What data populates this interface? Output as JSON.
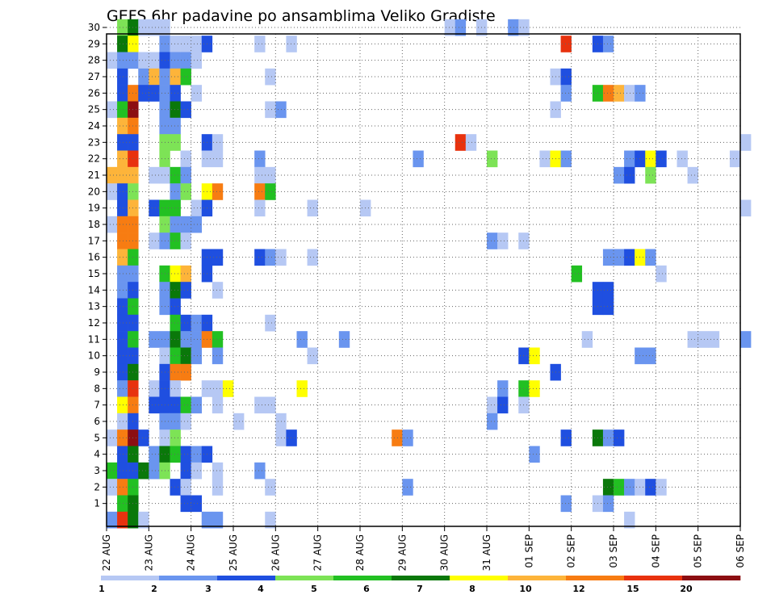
{
  "chart_data": {
    "type": "heatmap",
    "title": "GEFS 6hr padavine po ansamblima Veliko Gradiste",
    "xlabel": "",
    "ylabel": "",
    "x_ticks": [
      "22 AUG",
      "23 AUG",
      "24 AUG",
      "25 AUG",
      "26 AUG",
      "27 AUG",
      "28 AUG",
      "29 AUG",
      "30 AUG",
      "31 AUG",
      "01 SEP",
      "02 SEP",
      "03 SEP",
      "04 SEP",
      "05 SEP",
      "06 SEP"
    ],
    "y_ticks": [
      "1",
      "2",
      "3",
      "4",
      "5",
      "6",
      "7",
      "8",
      "9",
      "10",
      "11",
      "12",
      "13",
      "14",
      "15",
      "16",
      "17",
      "18",
      "19",
      "20",
      "21",
      "22",
      "23",
      "24",
      "25",
      "26",
      "27",
      "28",
      "29",
      "30"
    ],
    "members": 30,
    "steps_per_day": 4,
    "grid": true,
    "colorbar": {
      "position": "bottom",
      "labels": [
        "1",
        "2",
        "3",
        "4",
        "5",
        "6",
        "7",
        "8",
        "10",
        "12",
        "15",
        "20"
      ],
      "colors": [
        "#b6c8f4",
        "#6a95ef",
        "#1f4fe0",
        "#7de356",
        "#22c022",
        "#0a780a",
        "#ffff00",
        "#fdb43a",
        "#f77c12",
        "#e8320e",
        "#8c0e12"
      ]
    },
    "cells": [
      {
        "m": 30,
        "x": [
          1,
          2
        ],
        "l": [
          4,
          6
        ]
      },
      {
        "m": 30,
        "x": [
          3,
          4,
          5
        ],
        "l": [
          1,
          1,
          1
        ]
      },
      {
        "m": 30,
        "x": [
          32,
          33,
          35,
          38,
          39
        ],
        "l": [
          1,
          2,
          1,
          2,
          1
        ]
      },
      {
        "m": 29,
        "x": [
          1,
          2
        ],
        "l": [
          6,
          7
        ]
      },
      {
        "m": 29,
        "x": [
          5,
          6,
          7,
          8,
          9
        ],
        "l": [
          2,
          1,
          1,
          1,
          3
        ]
      },
      {
        "m": 29,
        "x": [
          14,
          17
        ],
        "l": [
          1,
          1
        ]
      },
      {
        "m": 29,
        "x": [
          43,
          46,
          47
        ],
        "l": [
          10,
          3,
          2
        ]
      },
      {
        "m": 28,
        "x": [
          0,
          1,
          2,
          3,
          4,
          5,
          6,
          7,
          8
        ],
        "l": [
          1,
          2,
          2,
          1,
          1,
          3,
          2,
          2,
          1
        ]
      },
      {
        "m": 27,
        "x": [
          1,
          3,
          4,
          5,
          6,
          7
        ],
        "l": [
          3,
          2,
          8,
          2,
          8,
          5
        ]
      },
      {
        "m": 27,
        "x": [
          15,
          42,
          43
        ],
        "l": [
          1,
          1,
          3
        ]
      },
      {
        "m": 26,
        "x": [
          1,
          2,
          3,
          4,
          5,
          6,
          8
        ],
        "l": [
          3,
          9,
          3,
          3,
          2,
          3,
          1
        ]
      },
      {
        "m": 26,
        "x": [
          43,
          46,
          47,
          48,
          49,
          50
        ],
        "l": [
          2,
          5,
          9,
          8,
          1,
          2
        ]
      },
      {
        "m": 25,
        "x": [
          0,
          1,
          2,
          5,
          6,
          7
        ],
        "l": [
          1,
          5,
          11,
          2,
          6,
          3
        ]
      },
      {
        "m": 25,
        "x": [
          15,
          16,
          42
        ],
        "l": [
          1,
          2,
          1
        ]
      },
      {
        "m": 24,
        "x": [
          1,
          2,
          5,
          6
        ],
        "l": [
          8,
          9,
          2,
          2
        ]
      },
      {
        "m": 23,
        "x": [
          1,
          2,
          5,
          6,
          9,
          10
        ],
        "l": [
          3,
          3,
          4,
          4,
          3,
          1
        ]
      },
      {
        "m": 23,
        "x": [
          33,
          34,
          60
        ],
        "l": [
          10,
          1,
          1
        ]
      },
      {
        "m": 22,
        "x": [
          1,
          2,
          5,
          7,
          9,
          10,
          14
        ],
        "l": [
          8,
          10,
          4,
          1,
          1,
          1,
          2
        ]
      },
      {
        "m": 22,
        "x": [
          29,
          36,
          41,
          42,
          43
        ],
        "l": [
          2,
          4,
          1,
          7,
          2
        ]
      },
      {
        "m": 22,
        "x": [
          49,
          50,
          51,
          52,
          54,
          59
        ],
        "l": [
          2,
          3,
          7,
          3,
          1,
          1
        ]
      },
      {
        "m": 21,
        "x": [
          0,
          1,
          2,
          4,
          5,
          6,
          7
        ],
        "l": [
          8,
          8,
          8,
          1,
          1,
          5,
          2
        ]
      },
      {
        "m": 21,
        "x": [
          14,
          15
        ],
        "l": [
          1,
          1
        ]
      },
      {
        "m": 21,
        "x": [
          48,
          49,
          51,
          55
        ],
        "l": [
          2,
          3,
          4,
          1
        ]
      },
      {
        "m": 20,
        "x": [
          0,
          1,
          2,
          6,
          7,
          9,
          10
        ],
        "l": [
          1,
          3,
          4,
          2,
          4,
          7,
          9
        ]
      },
      {
        "m": 20,
        "x": [
          14,
          15
        ],
        "l": [
          9,
          5
        ]
      },
      {
        "m": 19,
        "x": [
          1,
          2,
          4,
          5,
          6,
          8,
          9
        ],
        "l": [
          3,
          8,
          3,
          5,
          5,
          1,
          3
        ]
      },
      {
        "m": 19,
        "x": [
          14,
          19,
          24,
          60
        ],
        "l": [
          1,
          1,
          1,
          1
        ]
      },
      {
        "m": 18,
        "x": [
          0,
          1,
          2,
          5,
          6,
          7,
          8
        ],
        "l": [
          1,
          9,
          9,
          4,
          2,
          2,
          2
        ]
      },
      {
        "m": 17,
        "x": [
          1,
          2,
          4,
          5,
          6,
          7
        ],
        "l": [
          9,
          9,
          1,
          2,
          5,
          1
        ]
      },
      {
        "m": 17,
        "x": [
          36,
          37,
          39
        ],
        "l": [
          2,
          1,
          1
        ]
      },
      {
        "m": 16,
        "x": [
          1,
          2,
          9,
          10
        ],
        "l": [
          8,
          5,
          3,
          3
        ]
      },
      {
        "m": 16,
        "x": [
          14,
          15,
          16,
          19
        ],
        "l": [
          3,
          2,
          1,
          1
        ]
      },
      {
        "m": 16,
        "x": [
          47,
          48,
          49,
          50,
          51
        ],
        "l": [
          2,
          2,
          3,
          7,
          2
        ]
      },
      {
        "m": 15,
        "x": [
          1,
          2,
          5,
          6,
          7,
          9
        ],
        "l": [
          2,
          2,
          5,
          7,
          8,
          3
        ]
      },
      {
        "m": 15,
        "x": [
          44,
          52
        ],
        "l": [
          5,
          1
        ]
      },
      {
        "m": 14,
        "x": [
          1,
          2,
          5,
          6,
          7,
          10
        ],
        "l": [
          2,
          3,
          2,
          6,
          3,
          1
        ]
      },
      {
        "m": 14,
        "x": [
          46,
          47
        ],
        "l": [
          3,
          3
        ]
      },
      {
        "m": 13,
        "x": [
          1,
          2,
          5,
          6
        ],
        "l": [
          3,
          5,
          2,
          3
        ]
      },
      {
        "m": 13,
        "x": [
          46,
          47
        ],
        "l": [
          3,
          3
        ]
      },
      {
        "m": 12,
        "x": [
          1,
          2,
          6,
          7,
          8,
          9
        ],
        "l": [
          3,
          3,
          5,
          3,
          2,
          3
        ]
      },
      {
        "m": 12,
        "x": [
          15
        ],
        "l": [
          1
        ]
      },
      {
        "m": 11,
        "x": [
          1,
          2,
          4,
          5,
          6,
          7,
          8,
          9,
          10
        ],
        "l": [
          3,
          5,
          2,
          2,
          6,
          2,
          2,
          9,
          5
        ]
      },
      {
        "m": 11,
        "x": [
          18,
          22,
          45,
          55,
          56,
          57,
          60
        ],
        "l": [
          2,
          2,
          1,
          1,
          1,
          1,
          2
        ]
      },
      {
        "m": 10,
        "x": [
          1,
          2,
          5,
          6,
          7,
          8,
          10
        ],
        "l": [
          3,
          3,
          1,
          5,
          6,
          2,
          2
        ]
      },
      {
        "m": 10,
        "x": [
          19,
          39,
          40,
          50,
          51
        ],
        "l": [
          1,
          3,
          7,
          2,
          2
        ]
      },
      {
        "m": 9,
        "x": [
          1,
          2,
          5,
          6,
          7
        ],
        "l": [
          3,
          6,
          3,
          9,
          9
        ]
      },
      {
        "m": 9,
        "x": [
          42
        ],
        "l": [
          3
        ]
      },
      {
        "m": 8,
        "x": [
          1,
          2,
          4,
          5,
          6,
          9,
          10,
          11
        ],
        "l": [
          2,
          10,
          1,
          3,
          1,
          1,
          1,
          7
        ]
      },
      {
        "m": 8,
        "x": [
          18,
          37,
          39,
          40
        ],
        "l": [
          7,
          2,
          5,
          7
        ]
      },
      {
        "m": 7,
        "x": [
          1,
          2,
          4,
          5,
          6,
          7,
          8,
          10
        ],
        "l": [
          7,
          9,
          3,
          3,
          3,
          5,
          2,
          1
        ]
      },
      {
        "m": 7,
        "x": [
          14,
          15,
          36,
          37,
          39
        ],
        "l": [
          1,
          1,
          1,
          3,
          1
        ]
      },
      {
        "m": 6,
        "x": [
          1,
          2,
          5,
          6,
          7,
          12,
          16
        ],
        "l": [
          1,
          3,
          2,
          2,
          1,
          1,
          1
        ]
      },
      {
        "m": 6,
        "x": [
          36
        ],
        "l": [
          2
        ]
      },
      {
        "m": 5,
        "x": [
          0,
          1,
          2,
          3,
          5,
          6
        ],
        "l": [
          1,
          9,
          11,
          3,
          1,
          4
        ]
      },
      {
        "m": 5,
        "x": [
          16,
          17,
          27,
          28
        ],
        "l": [
          1,
          3,
          9,
          2
        ]
      },
      {
        "m": 5,
        "x": [
          43,
          46,
          47,
          48
        ],
        "l": [
          3,
          6,
          2,
          3
        ]
      },
      {
        "m": 4,
        "x": [
          1,
          2,
          4,
          5,
          6,
          7,
          8,
          9
        ],
        "l": [
          3,
          6,
          2,
          6,
          5,
          3,
          2,
          3
        ]
      },
      {
        "m": 4,
        "x": [
          40
        ],
        "l": [
          2
        ]
      },
      {
        "m": 3,
        "x": [
          0,
          1,
          2,
          3,
          4,
          5,
          7,
          8
        ],
        "l": [
          5,
          3,
          3,
          6,
          2,
          4,
          3,
          1
        ]
      },
      {
        "m": 3,
        "x": [
          10,
          14
        ],
        "l": [
          1,
          2
        ]
      },
      {
        "m": 2,
        "x": [
          0,
          1,
          2,
          6,
          7,
          10
        ],
        "l": [
          1,
          9,
          5,
          3,
          1,
          1
        ]
      },
      {
        "m": 2,
        "x": [
          15,
          28
        ],
        "l": [
          1,
          2
        ]
      },
      {
        "m": 2,
        "x": [
          47,
          48,
          49,
          50,
          51,
          52
        ],
        "l": [
          6,
          5,
          2,
          1,
          3,
          1
        ]
      },
      {
        "m": 1,
        "x": [
          1,
          2,
          7,
          8
        ],
        "l": [
          5,
          6,
          3,
          3
        ]
      },
      {
        "m": 1,
        "x": [
          43,
          46,
          47
        ],
        "l": [
          2,
          1,
          2
        ]
      },
      {
        "m": 0,
        "x": [
          0,
          1,
          2,
          3,
          9,
          10,
          15,
          49
        ],
        "l": [
          2,
          10,
          6,
          1,
          2,
          2,
          1,
          1
        ]
      }
    ]
  }
}
